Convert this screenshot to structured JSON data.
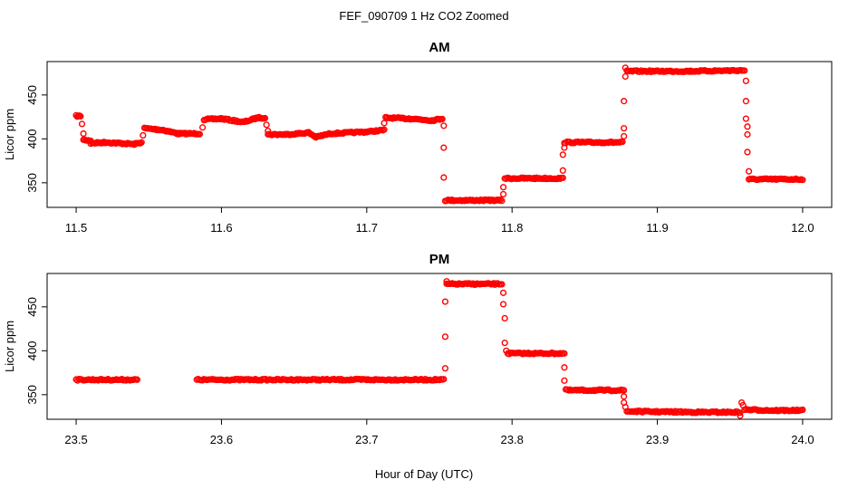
{
  "figure_title": "FEF_090709  1 Hz CO2 Zoomed",
  "shared_xlabel": "Hour of Day (UTC)",
  "marker_color": "#ff0000",
  "chart_data": [
    {
      "type": "scatter",
      "title": "AM",
      "xlabel": "",
      "ylabel": "Licor ppm",
      "xlim": [
        11.48,
        12.02
      ],
      "ylim": [
        322,
        488
      ],
      "xticks": [
        "11.5",
        "11.6",
        "11.7",
        "11.8",
        "11.9",
        "12.0"
      ],
      "yticks": [
        "350",
        "400",
        "450"
      ],
      "grid": false,
      "segments": [
        {
          "x": [
            11.5,
            11.503
          ],
          "y": [
            426,
            426
          ]
        },
        {
          "x": [
            11.505,
            11.51
          ],
          "y": [
            399,
            398
          ]
        },
        {
          "x": [
            11.51,
            11.52,
            11.53,
            11.54,
            11.545
          ],
          "y": [
            395,
            396,
            395,
            394,
            396
          ]
        },
        {
          "x": [
            11.547,
            11.56,
            11.57,
            11.585
          ],
          "y": [
            412,
            410,
            406,
            406
          ]
        },
        {
          "x": [
            11.588,
            11.6,
            11.615,
            11.625,
            11.63
          ],
          "y": [
            422,
            423,
            419,
            424,
            424
          ]
        },
        {
          "x": [
            11.632,
            11.645,
            11.66,
            11.665,
            11.675,
            11.7,
            11.712
          ],
          "y": [
            405,
            405,
            407,
            402,
            406,
            408,
            410
          ]
        },
        {
          "x": [
            11.713,
            11.73,
            11.745,
            11.752
          ],
          "y": [
            424,
            423,
            421,
            423
          ]
        },
        {
          "x": [
            11.754,
            11.77,
            11.785,
            11.793
          ],
          "y": [
            330,
            330,
            330,
            330
          ]
        },
        {
          "x": [
            11.795,
            11.815,
            11.835
          ],
          "y": [
            355,
            355,
            355
          ]
        },
        {
          "x": [
            11.836,
            11.855,
            11.876
          ],
          "y": [
            396,
            396,
            396
          ]
        },
        {
          "x": [
            11.879,
            11.92,
            11.96
          ],
          "y": [
            477,
            477,
            478
          ]
        },
        {
          "x": [
            11.963,
            11.98,
            12.0
          ],
          "y": [
            354,
            354,
            354
          ]
        }
      ],
      "points": [
        {
          "x": 11.504,
          "y": 417
        },
        {
          "x": 11.505,
          "y": 406
        },
        {
          "x": 11.546,
          "y": 404
        },
        {
          "x": 11.587,
          "y": 413
        },
        {
          "x": 11.631,
          "y": 416
        },
        {
          "x": 11.632,
          "y": 409
        },
        {
          "x": 11.712,
          "y": 418
        },
        {
          "x": 11.753,
          "y": 415
        },
        {
          "x": 11.753,
          "y": 390
        },
        {
          "x": 11.753,
          "y": 356
        },
        {
          "x": 11.794,
          "y": 337
        },
        {
          "x": 11.794,
          "y": 345
        },
        {
          "x": 11.835,
          "y": 364
        },
        {
          "x": 11.835,
          "y": 382
        },
        {
          "x": 11.836,
          "y": 390
        },
        {
          "x": 11.877,
          "y": 403
        },
        {
          "x": 11.877,
          "y": 412
        },
        {
          "x": 11.877,
          "y": 443
        },
        {
          "x": 11.878,
          "y": 471
        },
        {
          "x": 11.878,
          "y": 481
        },
        {
          "x": 11.961,
          "y": 466
        },
        {
          "x": 11.961,
          "y": 443
        },
        {
          "x": 11.961,
          "y": 423
        },
        {
          "x": 11.962,
          "y": 414
        },
        {
          "x": 11.962,
          "y": 405
        },
        {
          "x": 11.962,
          "y": 385
        },
        {
          "x": 11.963,
          "y": 363
        }
      ]
    },
    {
      "type": "scatter",
      "title": "PM",
      "xlabel": "Hour of Day (UTC)",
      "ylabel": "Licor ppm",
      "xlim": [
        23.48,
        24.02
      ],
      "ylim": [
        322,
        488
      ],
      "xticks": [
        "23.5",
        "23.6",
        "23.7",
        "23.8",
        "23.9",
        "24.0"
      ],
      "yticks": [
        "350",
        "400",
        "450"
      ],
      "grid": false,
      "segments": [
        {
          "x": [
            23.5,
            23.52,
            23.542
          ],
          "y": [
            367,
            367,
            367
          ]
        },
        {
          "x": [
            23.583,
            23.65,
            23.7,
            23.753
          ],
          "y": [
            367,
            367,
            367,
            367
          ]
        },
        {
          "x": [
            23.755,
            23.775,
            23.793
          ],
          "y": [
            476,
            476,
            476
          ]
        },
        {
          "x": [
            23.797,
            23.815,
            23.836
          ],
          "y": [
            397,
            397,
            397
          ]
        },
        {
          "x": [
            23.838,
            23.86,
            23.877
          ],
          "y": [
            355,
            355,
            355
          ]
        },
        {
          "x": [
            23.879,
            23.93,
            23.957
          ],
          "y": [
            331,
            330,
            330
          ]
        },
        {
          "x": [
            23.96,
            23.98,
            24.0
          ],
          "y": [
            333,
            332,
            332
          ]
        }
      ],
      "points": [
        {
          "x": 23.754,
          "y": 380
        },
        {
          "x": 23.754,
          "y": 416
        },
        {
          "x": 23.754,
          "y": 456
        },
        {
          "x": 23.755,
          "y": 479
        },
        {
          "x": 23.794,
          "y": 466
        },
        {
          "x": 23.794,
          "y": 453
        },
        {
          "x": 23.795,
          "y": 437
        },
        {
          "x": 23.795,
          "y": 409
        },
        {
          "x": 23.796,
          "y": 400
        },
        {
          "x": 23.836,
          "y": 381
        },
        {
          "x": 23.836,
          "y": 366
        },
        {
          "x": 23.837,
          "y": 356
        },
        {
          "x": 23.877,
          "y": 348
        },
        {
          "x": 23.877,
          "y": 341
        },
        {
          "x": 23.878,
          "y": 336
        },
        {
          "x": 23.957,
          "y": 326
        },
        {
          "x": 23.958,
          "y": 341
        },
        {
          "x": 23.959,
          "y": 338
        }
      ]
    }
  ]
}
